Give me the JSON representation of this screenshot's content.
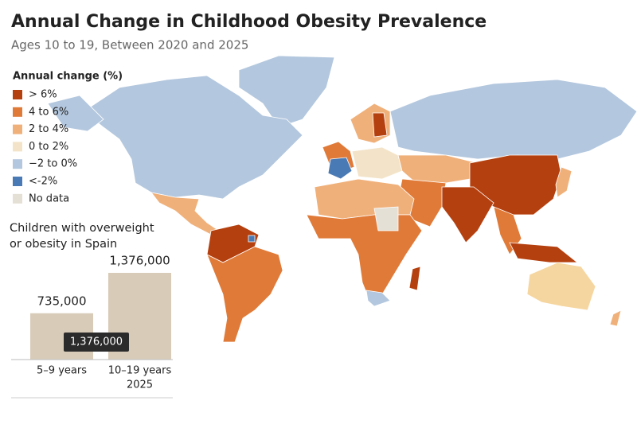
{
  "header": {
    "title": "Annual Change in Childhood Obesity Prevalence",
    "subtitle": "Ages 10 to 19, Between 2020 and 2025"
  },
  "legend": {
    "title": "Annual change (%)",
    "items": [
      {
        "label": "> 6%",
        "color": "#b5400f"
      },
      {
        "label": "4 to 6%",
        "color": "#e07a38"
      },
      {
        "label": "2 to 4%",
        "color": "#f0b07a"
      },
      {
        "label": "0 to 2%",
        "color": "#f3e4c9"
      },
      {
        "label": "−2 to 0%",
        "color": "#b3c7de"
      },
      {
        "label": "<-2%",
        "color": "#4a7ab5"
      },
      {
        "label": "No data",
        "color": "#e5e0d6"
      }
    ]
  },
  "inset": {
    "type": "bar",
    "title": [
      "Children with overweight",
      "or obesity in Spain"
    ],
    "categories": [
      [
        "5–9 years"
      ],
      [
        "10–19 years",
        "2025"
      ]
    ],
    "values": [
      735000,
      1376000
    ],
    "value_labels": [
      "735,000",
      "1,376,000"
    ],
    "color": "#d8cbb8",
    "tooltip": "1,376,000"
  }
}
